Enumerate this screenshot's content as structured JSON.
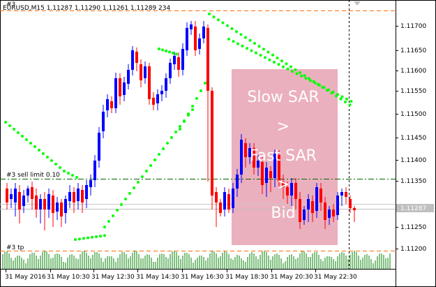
{
  "chart_header": {
    "symbol_line": "EURUSD,M15  1.11287 1.11290 1.11261 1.11289 234",
    "prefix": "#3"
  },
  "order_labels": {
    "sell_limit": "#3 sell limit 0.10",
    "tp": "#3 tp"
  },
  "annotation": {
    "line1": "Slow SAR",
    "line2": ">",
    "line3": "Fast SAR",
    "line4": ">",
    "line5": "Bid"
  },
  "price_axis": {
    "labels": [
      "1.11700",
      "1.11650",
      "1.11600",
      "1.11550",
      "1.11500",
      "1.11450",
      "1.11400",
      "1.11350",
      "1.11250",
      "1.11200"
    ],
    "current_price_label": "1.11287"
  },
  "time_axis": {
    "labels": [
      "31 May 2016",
      "31 May 10:30",
      "31 May 12:30",
      "31 May 14:30",
      "31 May 16:30",
      "31 May 18:30",
      "31 May 20:30",
      "31 May 22:30"
    ]
  },
  "colors": {
    "bull": "#0000ff",
    "bear": "#ff0000",
    "sar": "#00ff00",
    "level_line": "#ff6a00",
    "sell_limit_line": "#006400",
    "bid_line": "#c0c0c0",
    "volume": "#008000",
    "overlay": "#e7a2b3"
  }
}
